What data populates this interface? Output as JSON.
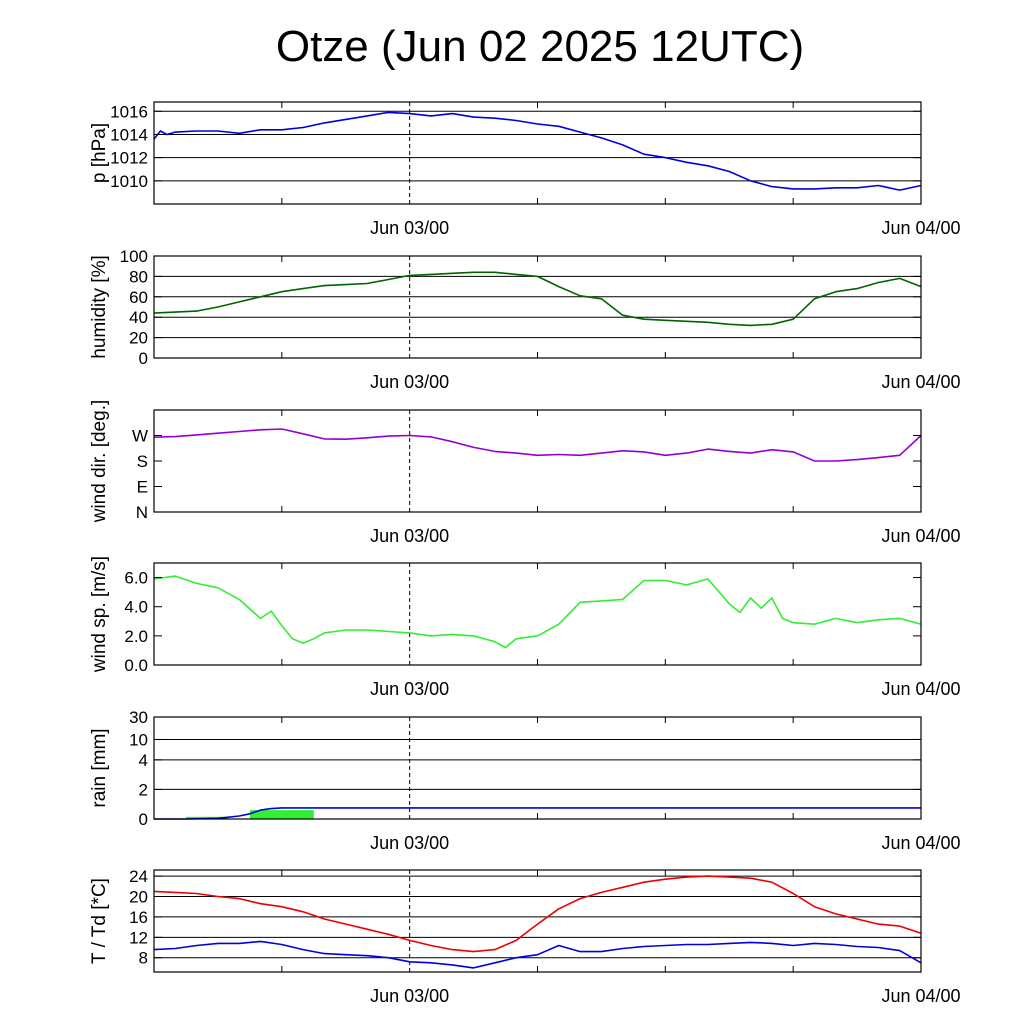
{
  "title": "Otze (Jun 02 2025 12UTC)",
  "chart_data": [
    {
      "type": "line",
      "ylabel": "p [hPa]",
      "x_tick_labels": [
        "Jun 03/00",
        "Jun 04/00"
      ],
      "x_range_hours": [
        0,
        36
      ],
      "ylim": [
        1008,
        1016.8
      ],
      "y_ticks": [
        1010,
        1012,
        1014,
        1016
      ],
      "y_tick_labels": [
        "1010",
        "1012",
        "1014",
        "1016"
      ],
      "grid_lines": [
        1010,
        1012,
        1014,
        1016
      ],
      "series": [
        {
          "color": "#0000dd",
          "x": [
            0,
            0.3,
            0.6,
            1,
            2,
            3,
            4,
            5,
            6,
            7,
            8,
            9,
            10,
            11,
            12,
            13,
            14,
            15,
            16,
            17,
            18,
            19,
            20,
            21,
            22,
            23,
            24,
            25,
            26,
            27,
            28,
            29,
            30,
            31,
            32,
            33,
            34,
            35,
            36
          ],
          "y": [
            1013.6,
            1014.3,
            1014.0,
            1014.2,
            1014.3,
            1014.3,
            1014.1,
            1014.4,
            1014.4,
            1014.6,
            1015.0,
            1015.3,
            1015.6,
            1015.9,
            1015.8,
            1015.6,
            1015.8,
            1015.5,
            1015.4,
            1015.2,
            1014.9,
            1014.7,
            1014.2,
            1013.7,
            1013.1,
            1012.3,
            1012.0,
            1011.6,
            1011.3,
            1010.8,
            1010.0,
            1009.5,
            1009.3,
            1009.3,
            1009.4,
            1009.4,
            1009.6,
            1009.2,
            1009.6
          ]
        }
      ]
    },
    {
      "type": "line",
      "ylabel": "humidity [%]",
      "x_tick_labels": [
        "Jun 03/00",
        "Jun 04/00"
      ],
      "x_range_hours": [
        0,
        36
      ],
      "ylim": [
        0,
        100
      ],
      "y_ticks": [
        0,
        20,
        40,
        60,
        80,
        100
      ],
      "y_tick_labels": [
        "0",
        "20",
        "40",
        "60",
        "80",
        "100"
      ],
      "grid_lines": [
        20,
        40,
        60,
        80
      ],
      "series": [
        {
          "color": "#006400",
          "x": [
            0,
            1,
            2,
            3,
            4,
            5,
            6,
            7,
            8,
            9,
            10,
            11,
            12,
            13,
            14,
            15,
            16,
            17,
            18,
            19,
            20,
            21,
            22,
            23,
            24,
            25,
            26,
            27,
            28,
            29,
            30,
            31,
            32,
            33,
            34,
            35,
            36
          ],
          "y": [
            44,
            45,
            46,
            50,
            55,
            60,
            65,
            68,
            71,
            72,
            73,
            77,
            81,
            82,
            83,
            84,
            84,
            82,
            80,
            70,
            61,
            58,
            42,
            38,
            37,
            36,
            35,
            33,
            32,
            33,
            38,
            58,
            65,
            68,
            74,
            78,
            70
          ]
        }
      ]
    },
    {
      "type": "line",
      "ylabel": "wind dir. [deg.]",
      "x_tick_labels": [
        "Jun 03/00",
        "Jun 04/00"
      ],
      "x_range_hours": [
        0,
        36
      ],
      "ylim": [
        0,
        360
      ],
      "y_ticks": [
        0,
        90,
        180,
        270
      ],
      "y_tick_labels": [
        "N",
        "E",
        "S",
        "W"
      ],
      "grid_lines": [],
      "series": [
        {
          "color": "#9400d3",
          "x": [
            0,
            1,
            2,
            3,
            4,
            5,
            6,
            7,
            8,
            9,
            10,
            11,
            12,
            13,
            14,
            15,
            16,
            17,
            18,
            19,
            20,
            21,
            22,
            23,
            24,
            25,
            26,
            27,
            28,
            29,
            30,
            31,
            32,
            33,
            34,
            35,
            36
          ],
          "y": [
            264,
            266,
            272,
            278,
            284,
            290,
            293,
            276,
            258,
            257,
            262,
            268,
            270,
            265,
            248,
            228,
            214,
            208,
            200,
            203,
            200,
            208,
            216,
            212,
            200,
            208,
            222,
            214,
            208,
            220,
            212,
            180,
            180,
            185,
            192,
            200,
            270
          ]
        }
      ]
    },
    {
      "type": "line",
      "ylabel": "wind sp. [m/s]",
      "x_tick_labels": [
        "Jun 03/00",
        "Jun 04/00"
      ],
      "x_range_hours": [
        0,
        36
      ],
      "ylim": [
        0,
        7
      ],
      "y_ticks": [
        0,
        2,
        4,
        6
      ],
      "y_tick_labels": [
        "0.0",
        "2.0",
        "4.0",
        "6.0"
      ],
      "grid_lines": [],
      "series": [
        {
          "color": "#33ee33",
          "x": [
            0,
            1,
            2,
            3,
            4,
            5,
            5.5,
            6,
            6.5,
            7,
            7.5,
            8,
            9,
            10,
            11,
            12,
            13,
            14,
            15,
            16,
            16.5,
            17,
            18,
            19,
            20,
            21,
            22,
            23,
            24,
            25,
            26,
            27,
            27.5,
            28,
            28.5,
            29,
            29.5,
            30,
            31,
            32,
            33,
            34,
            35,
            36
          ],
          "y": [
            5.9,
            6.1,
            5.6,
            5.3,
            4.5,
            3.2,
            3.7,
            2.7,
            1.8,
            1.5,
            1.8,
            2.2,
            2.4,
            2.4,
            2.3,
            2.2,
            2.0,
            2.1,
            2.0,
            1.6,
            1.2,
            1.8,
            2.0,
            2.8,
            4.3,
            4.4,
            4.5,
            5.8,
            5.8,
            5.5,
            5.9,
            4.2,
            3.6,
            4.6,
            3.9,
            4.6,
            3.2,
            2.9,
            2.8,
            3.2,
            2.9,
            3.1,
            3.2,
            2.8
          ]
        }
      ]
    },
    {
      "type": "area",
      "ylabel": "rain [mm]",
      "x_tick_labels": [
        "Jun 03/00",
        "Jun 04/00"
      ],
      "x_range_hours": [
        0,
        36
      ],
      "ylim": [
        0,
        30
      ],
      "y_scale": "nonlinear",
      "y_ticks": [
        0,
        2,
        4,
        10,
        30
      ],
      "y_tick_labels": [
        "0",
        "2",
        "4",
        "10",
        "30"
      ],
      "grid_lines": [
        2,
        4,
        10,
        30
      ],
      "bars": [
        {
          "color": "#33ee33",
          "x_start": 1.5,
          "x_end": 3.5,
          "value": 0.15
        },
        {
          "color": "#33ee33",
          "x_start": 4.5,
          "x_end": 7.5,
          "value": 0.6
        }
      ],
      "series": [
        {
          "color": "#0000dd",
          "x": [
            0,
            1.5,
            3,
            4,
            4.5,
            5,
            5.5,
            6,
            7,
            10,
            12,
            20,
            36
          ],
          "y": [
            0,
            0,
            0.05,
            0.2,
            0.35,
            0.6,
            0.7,
            0.75,
            0.75,
            0.75,
            0.75,
            0.75,
            0.75
          ]
        }
      ]
    },
    {
      "type": "line",
      "ylabel": "T / Td [*C]",
      "x_tick_labels": [
        "Jun 03/00",
        "Jun 04/00"
      ],
      "x_range_hours": [
        0,
        36
      ],
      "ylim": [
        5.2,
        25.2
      ],
      "y_ticks": [
        8,
        12,
        16,
        20,
        24
      ],
      "y_tick_labels": [
        "8",
        "12",
        "16",
        "20",
        "24"
      ],
      "grid_lines": [
        8,
        12,
        16,
        20,
        24
      ],
      "series": [
        {
          "color": "#ee0000",
          "x": [
            0,
            1,
            2,
            3,
            4,
            5,
            6,
            7,
            8,
            9,
            10,
            11,
            12,
            13,
            14,
            15,
            16,
            17,
            18,
            19,
            20,
            21,
            22,
            23,
            24,
            25,
            26,
            27,
            28,
            29,
            30,
            31,
            32,
            33,
            34,
            35,
            36
          ],
          "y": [
            21.0,
            20.8,
            20.6,
            20.0,
            19.6,
            18.6,
            18.0,
            17.0,
            15.6,
            14.6,
            13.6,
            12.6,
            11.4,
            10.4,
            9.6,
            9.2,
            9.6,
            11.4,
            14.6,
            17.6,
            19.6,
            20.8,
            21.8,
            22.8,
            23.4,
            23.8,
            24.0,
            23.8,
            23.6,
            22.8,
            20.6,
            18.0,
            16.6,
            15.6,
            14.6,
            14.2,
            12.8
          ]
        },
        {
          "color": "#0000dd",
          "x": [
            0,
            1,
            2,
            3,
            4,
            5,
            6,
            7,
            8,
            9,
            10,
            11,
            12,
            13,
            14,
            15,
            16,
            17,
            18,
            19,
            20,
            21,
            22,
            23,
            24,
            25,
            26,
            27,
            28,
            29,
            30,
            31,
            32,
            33,
            34,
            35,
            36
          ],
          "y": [
            9.6,
            9.8,
            10.4,
            10.8,
            10.8,
            11.2,
            10.6,
            9.6,
            8.8,
            8.6,
            8.4,
            8.0,
            7.2,
            7.0,
            6.6,
            6.0,
            7.0,
            8.0,
            8.6,
            10.4,
            9.2,
            9.2,
            9.8,
            10.2,
            10.4,
            10.6,
            10.6,
            10.8,
            11.0,
            10.8,
            10.4,
            10.8,
            10.6,
            10.2,
            10.0,
            9.4,
            7.0
          ]
        }
      ]
    }
  ]
}
